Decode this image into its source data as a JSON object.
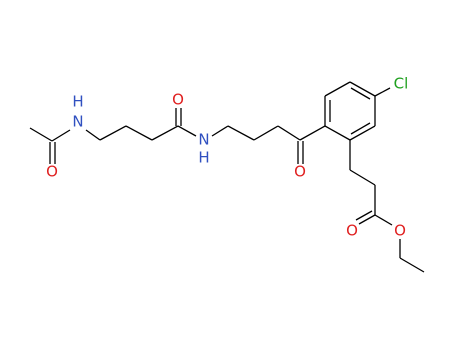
{
  "atoms": [
    {
      "label": "H"
    },
    {
      "label": "N"
    },
    {
      "label": "O"
    },
    {
      "label": "O"
    },
    {
      "label": "N"
    },
    {
      "label": "H"
    },
    {
      "label": "O"
    },
    {
      "label": "Cl"
    },
    {
      "label": "O"
    },
    {
      "label": "O"
    }
  ]
}
